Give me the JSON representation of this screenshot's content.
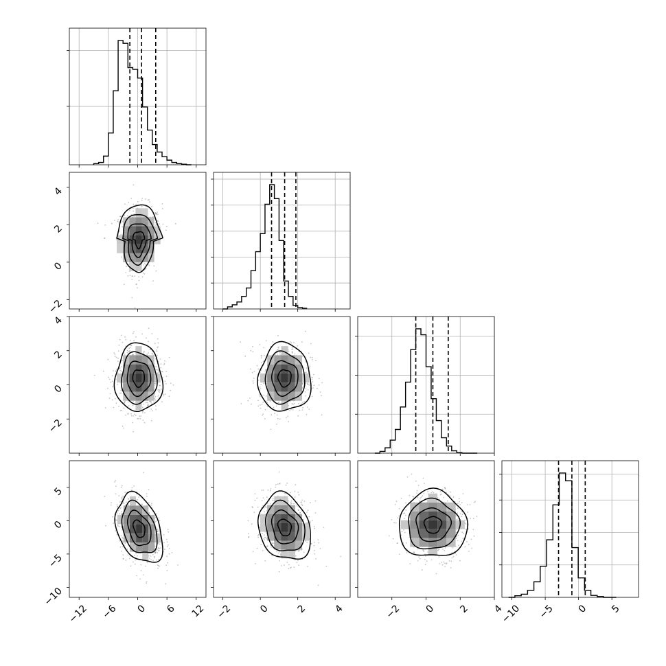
{
  "chart_data": {
    "type": "corner",
    "n_params": 4,
    "params": [
      {
        "range": [
          -14,
          14
        ],
        "ticks": [
          -12,
          -6,
          0,
          6,
          12
        ],
        "quantiles": [
          -1.6,
          0.8,
          3.7
        ],
        "hist": {
          "edges_start": -9,
          "bin_width": 1,
          "counts": [
            2,
            4,
            15,
            55,
            128,
            215,
            210,
            168,
            165,
            150,
            100,
            60,
            35,
            22,
            14,
            8,
            4,
            2,
            1,
            0
          ]
        },
        "grid_y": [
          0.45,
          0.88
        ]
      },
      {
        "range": [
          -2.5,
          4.8
        ],
        "ticks": [
          -2,
          0,
          2,
          4
        ],
        "quantiles": [
          0.6,
          1.3,
          1.9
        ],
        "hist": {
          "edges_start": -2.0,
          "bin_width": 0.25,
          "counts": [
            0,
            3,
            6,
            10,
            18,
            30,
            55,
            82,
            108,
            150,
            178,
            158,
            98,
            40,
            18,
            5,
            2,
            1
          ]
        },
        "grid_y": [
          0.2,
          0.4,
          0.6,
          0.8,
          1.0
        ]
      },
      {
        "range": [
          -4,
          4
        ],
        "ticks": [
          -2,
          0,
          2,
          4
        ],
        "quantiles": [
          -0.6,
          0.4,
          1.3
        ],
        "hist": {
          "edges_start": -3.0,
          "bin_width": 0.3,
          "counts": [
            0,
            3,
            9,
            22,
            40,
            78,
            120,
            175,
            210,
            200,
            146,
            92,
            55,
            26,
            12,
            4,
            1,
            0,
            0,
            0
          ]
        },
        "grid_y": [
          0.3,
          0.6,
          0.9
        ]
      },
      {
        "range": [
          -11.5,
          9
        ],
        "ticks": [
          -10,
          -5,
          0,
          5
        ],
        "quantiles": [
          -3.0,
          -1.0,
          1.0
        ],
        "hist": {
          "edges_start": -10.5,
          "bin_width": 0.95,
          "counts": [
            0,
            4,
            8,
            18,
            40,
            80,
            148,
            238,
            320,
            300,
            128,
            50,
            18,
            5,
            2,
            0,
            0
          ]
        },
        "grid_y": [
          0.25,
          0.5,
          0.75,
          0.95
        ]
      }
    ],
    "pairs": [
      {
        "row": 1,
        "col": 0,
        "mean": [
          0.2,
          1.2
        ],
        "sd": [
          2.4,
          0.9
        ],
        "rho": 0.05,
        "skew_xy": true
      },
      {
        "row": 2,
        "col": 0,
        "mean": [
          0.2,
          0.4
        ],
        "sd": [
          2.4,
          1.0
        ],
        "rho": 0.0
      },
      {
        "row": 2,
        "col": 1,
        "mean": [
          1.3,
          0.4
        ],
        "sd": [
          0.7,
          1.0
        ],
        "rho": 0.0
      },
      {
        "row": 3,
        "col": 0,
        "mean": [
          0.3,
          -1.2
        ],
        "sd": [
          2.4,
          2.6
        ],
        "rho": -0.35
      },
      {
        "row": 3,
        "col": 1,
        "mean": [
          1.3,
          -1.0
        ],
        "sd": [
          0.7,
          2.5
        ],
        "rho": -0.2
      },
      {
        "row": 3,
        "col": 2,
        "mean": [
          0.4,
          -0.6
        ],
        "sd": [
          1.0,
          2.5
        ],
        "rho": 0.0
      }
    ],
    "xlabels": [
      "",
      "",
      "",
      ""
    ],
    "ylabels": [
      "",
      "",
      "",
      ""
    ],
    "title": ""
  }
}
